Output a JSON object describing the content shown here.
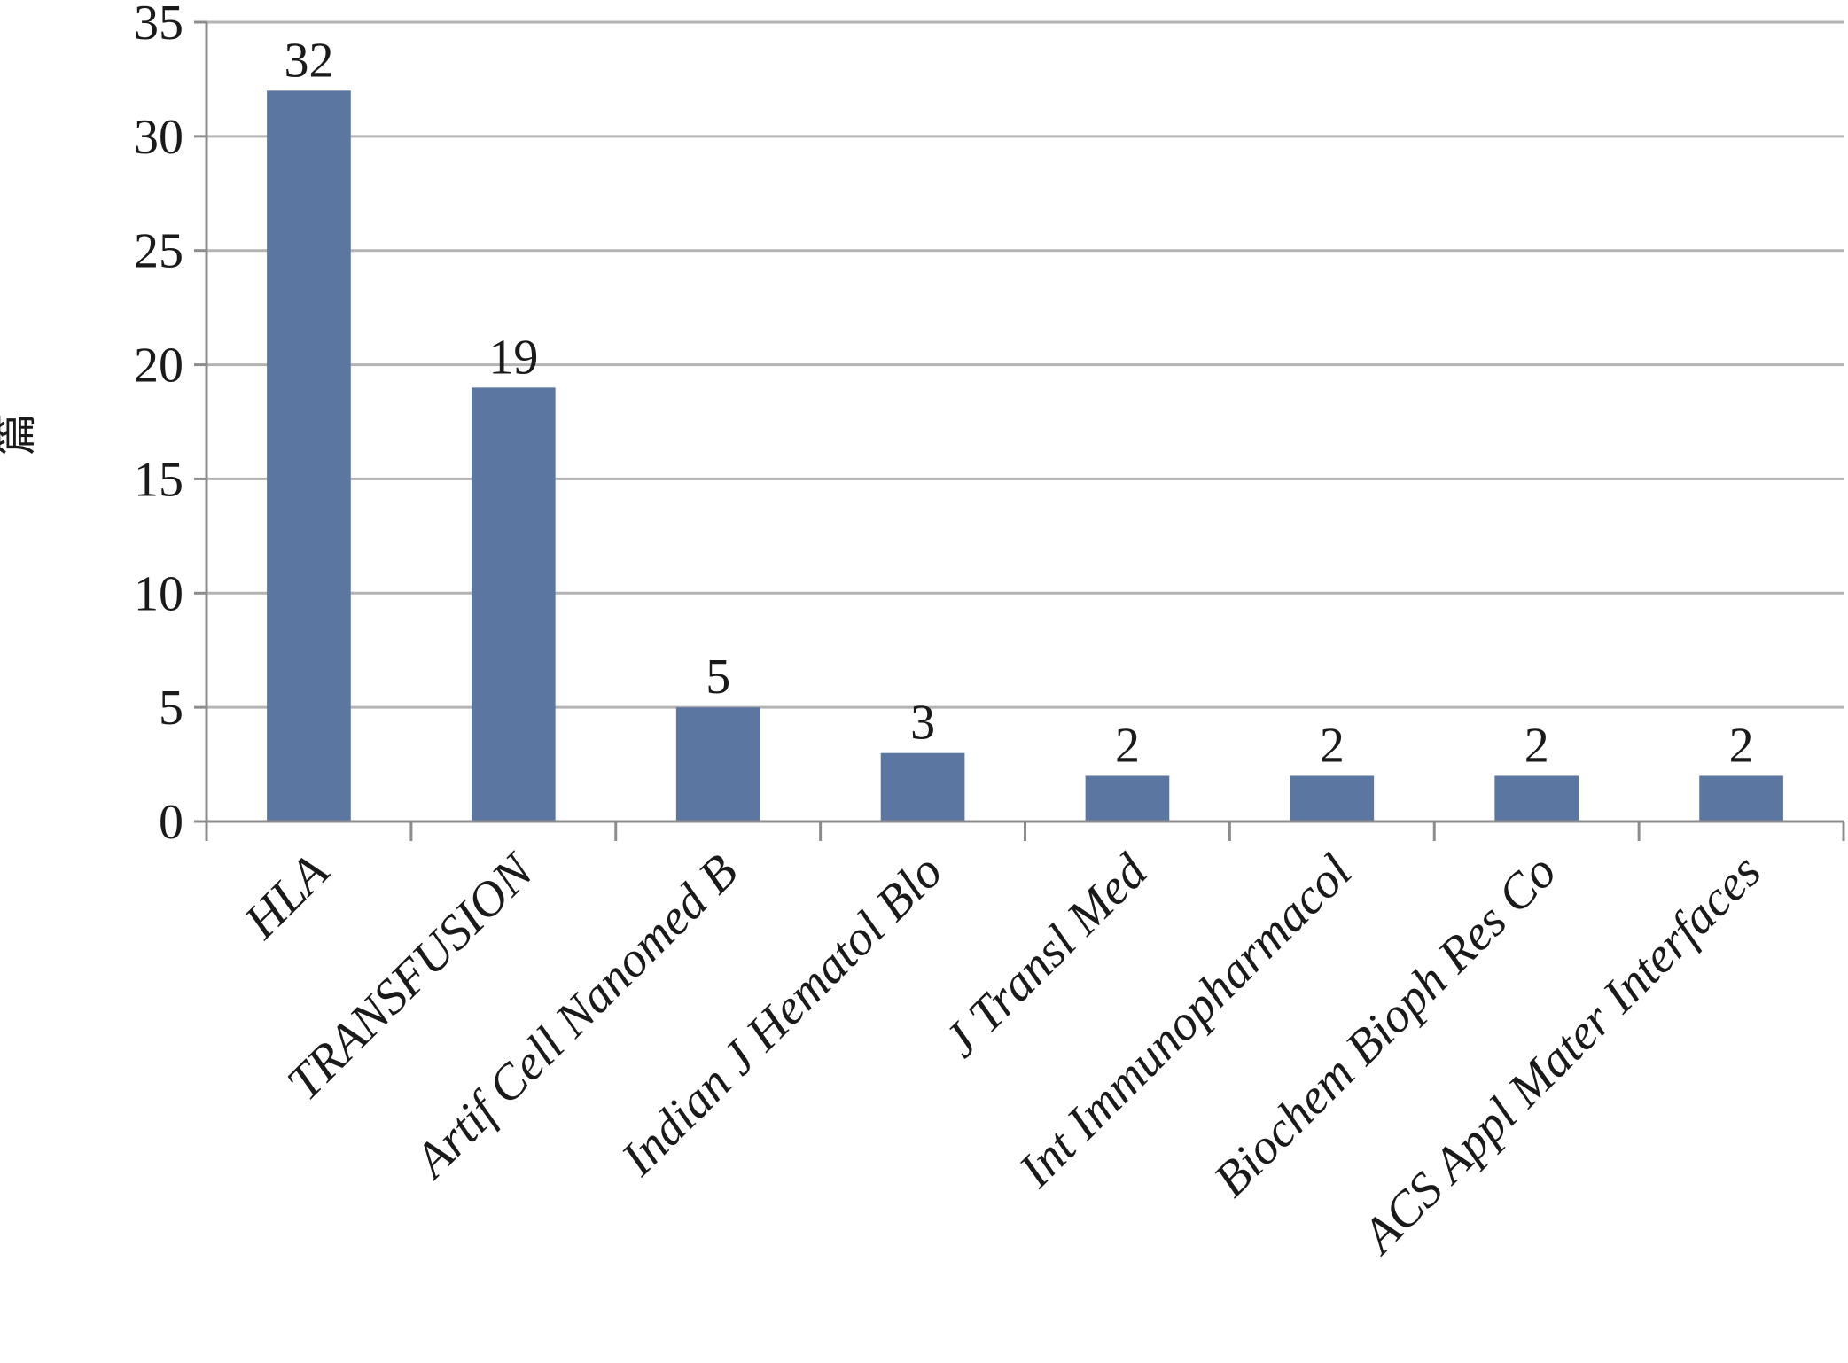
{
  "chart_data": {
    "type": "bar",
    "title": "",
    "xlabel": "",
    "ylabel": "篇",
    "categories": [
      "HLA",
      "TRANSFUSION",
      "Artif Cell Nanomed B",
      "Indian J Hematol Blo",
      "J Transl Med",
      "Int Immunopharmacol",
      "Biochem Bioph Res Co",
      "ACS Appl Mater Interfaces"
    ],
    "values": [
      32,
      19,
      5,
      3,
      2,
      2,
      2,
      2
    ],
    "data_labels": [
      "32",
      "19",
      "5",
      "3",
      "2",
      "2",
      "2",
      "2"
    ],
    "ylim": [
      0,
      35
    ],
    "yticks": [
      0,
      5,
      10,
      15,
      20,
      25,
      30,
      35
    ],
    "ytick_labels": [
      "0",
      "5",
      "10",
      "15",
      "20",
      "25",
      "30",
      "35"
    ],
    "grid": true,
    "legend": "none",
    "colors": {
      "bar": "#5b76a0",
      "grid": "#b3b3b3",
      "axis": "#8c8c8c",
      "text": "#1a1a1a"
    }
  }
}
